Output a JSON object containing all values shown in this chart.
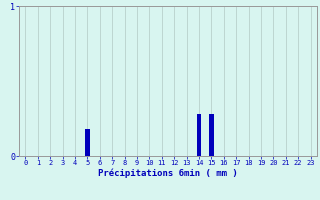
{
  "hours": [
    0,
    1,
    2,
    3,
    4,
    5,
    6,
    7,
    8,
    9,
    10,
    11,
    12,
    13,
    14,
    15,
    16,
    17,
    18,
    19,
    20,
    21,
    22,
    23
  ],
  "values": [
    0,
    0,
    0,
    0,
    0,
    0.18,
    0,
    0,
    0,
    0,
    0,
    0,
    0,
    0,
    0.28,
    0.28,
    0,
    0,
    0,
    0,
    0,
    0,
    0,
    0
  ],
  "xlabel": "Précipitations 6min ( mm )",
  "ylim": [
    0,
    1
  ],
  "xlim": [
    -0.5,
    23.5
  ],
  "bar_color": "#0000bb",
  "background_color": "#d8f5f0",
  "grid_color": "#b8d0cc",
  "axis_color": "#999999",
  "text_color": "#0000bb",
  "ytick_labels": [
    "0",
    "1"
  ],
  "ytick_values": [
    0,
    1
  ],
  "xticks": [
    0,
    1,
    2,
    3,
    4,
    5,
    6,
    7,
    8,
    9,
    10,
    11,
    12,
    13,
    14,
    15,
    16,
    17,
    18,
    19,
    20,
    21,
    22,
    23
  ]
}
